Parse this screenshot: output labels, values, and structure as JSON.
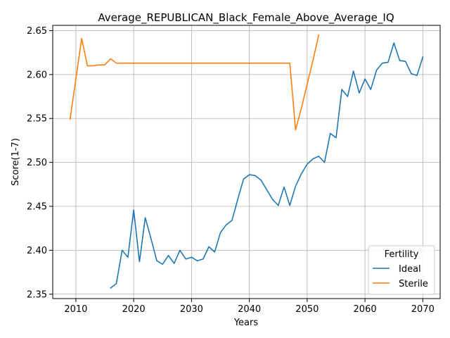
{
  "chart_data": {
    "type": "line",
    "title": "Average_REPUBLICAN_Black_Female_Above_Average_IQ",
    "xlabel": "Years",
    "ylabel": "Score(1-7)",
    "xlim": [
      2006,
      2073
    ],
    "ylim": [
      2.345,
      2.656
    ],
    "xticks": [
      2010,
      2020,
      2030,
      2040,
      2050,
      2060,
      2070
    ],
    "yticks": [
      2.35,
      2.4,
      2.45,
      2.5,
      2.55,
      2.6,
      2.65
    ],
    "ytick_labels": [
      "2.35",
      "2.40",
      "2.45",
      "2.50",
      "2.55",
      "2.60",
      "2.65"
    ],
    "grid": true,
    "legend": {
      "title": "Fertility",
      "placement": "lower-right"
    },
    "series": [
      {
        "name": "Ideal",
        "color": "#1f77b4",
        "x": [
          2016,
          2017,
          2018,
          2019,
          2020,
          2021,
          2022,
          2023,
          2024,
          2025,
          2026,
          2027,
          2028,
          2029,
          2030,
          2031,
          2032,
          2033,
          2034,
          2035,
          2036,
          2037,
          2038,
          2039,
          2040,
          2041,
          2042,
          2043,
          2044,
          2045,
          2046,
          2047,
          2048,
          2049,
          2050,
          2051,
          2052,
          2053,
          2054,
          2055,
          2056,
          2057,
          2058,
          2059,
          2060,
          2061,
          2062,
          2063,
          2064,
          2065,
          2066,
          2067,
          2068,
          2069,
          2070
        ],
        "y": [
          2.357,
          2.362,
          2.4,
          2.392,
          2.446,
          2.387,
          2.437,
          2.413,
          2.388,
          2.384,
          2.394,
          2.385,
          2.4,
          2.39,
          2.392,
          2.388,
          2.39,
          2.404,
          2.398,
          2.42,
          2.429,
          2.434,
          2.458,
          2.481,
          2.486,
          2.485,
          2.48,
          2.469,
          2.458,
          2.451,
          2.472,
          2.451,
          2.473,
          2.487,
          2.498,
          2.504,
          2.507,
          2.5,
          2.533,
          2.528,
          2.583,
          2.575,
          2.604,
          2.579,
          2.595,
          2.583,
          2.605,
          2.613,
          2.614,
          2.636,
          2.616,
          2.615,
          2.601,
          2.599,
          2.62
        ]
      },
      {
        "name": "Sterile",
        "color": "#ff7f0e",
        "x": [
          2009,
          2011,
          2012,
          2013,
          2014,
          2015,
          2016,
          2017,
          2018,
          2019,
          2020,
          2021,
          2022,
          2023,
          2024,
          2025,
          2026,
          2027,
          2028,
          2029,
          2030,
          2031,
          2032,
          2033,
          2034,
          2035,
          2036,
          2037,
          2038,
          2039,
          2040,
          2041,
          2042,
          2043,
          2044,
          2045,
          2046,
          2047,
          2048,
          2049,
          2050,
          2051,
          2052
        ],
        "y": [
          2.549,
          2.641,
          2.61,
          2.61,
          2.611,
          2.611,
          2.618,
          2.613,
          2.613,
          2.613,
          2.613,
          2.613,
          2.613,
          2.613,
          2.613,
          2.613,
          2.613,
          2.613,
          2.613,
          2.613,
          2.613,
          2.613,
          2.613,
          2.613,
          2.613,
          2.613,
          2.613,
          2.613,
          2.613,
          2.613,
          2.613,
          2.613,
          2.613,
          2.613,
          2.613,
          2.613,
          2.613,
          2.613,
          2.537,
          2.562,
          2.589,
          2.616,
          2.645
        ]
      }
    ]
  }
}
